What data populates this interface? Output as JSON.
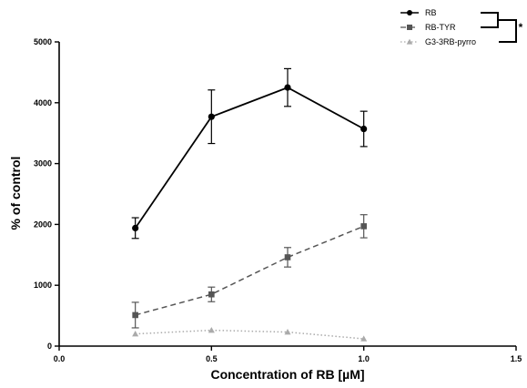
{
  "chart_data": {
    "type": "line",
    "xlabel": "Concentration of RB [µM]",
    "ylabel": "% of control",
    "xlim": [
      0,
      1.5
    ],
    "ylim": [
      0,
      5000
    ],
    "x_ticks": [
      0,
      0.5,
      1,
      1.5
    ],
    "x_tick_labels": [
      "0.0",
      "0.5",
      "1.0",
      "1.5"
    ],
    "y_ticks": [
      0,
      1000,
      2000,
      3000,
      4000,
      5000
    ],
    "y_tick_labels": [
      "0",
      "1000",
      "2000",
      "3000",
      "4000",
      "5000"
    ],
    "grid": false,
    "legend_position": "top-right",
    "significance_marker": "*",
    "series": [
      {
        "name": "RB",
        "color": "#000000",
        "line_style": "solid",
        "marker": "circle",
        "points": [
          {
            "x": 0.25,
            "y": 1940,
            "err": 170
          },
          {
            "x": 0.5,
            "y": 3770,
            "err": 440
          },
          {
            "x": 0.75,
            "y": 4250,
            "err": 310
          },
          {
            "x": 1.0,
            "y": 3570,
            "err": 290
          }
        ]
      },
      {
        "name": "RB-TYR",
        "color": "#555555",
        "line_style": "dashed",
        "marker": "square",
        "points": [
          {
            "x": 0.25,
            "y": 510,
            "err": 210
          },
          {
            "x": 0.5,
            "y": 850,
            "err": 120
          },
          {
            "x": 0.75,
            "y": 1460,
            "err": 160
          },
          {
            "x": 1.0,
            "y": 1970,
            "err": 190
          }
        ]
      },
      {
        "name": "G3-3RB-pyrro",
        "color": "#aaaaaa",
        "line_style": "dotted",
        "marker": "triangle",
        "points": [
          {
            "x": 0.25,
            "y": 200,
            "err": 0
          },
          {
            "x": 0.5,
            "y": 260,
            "err": 0
          },
          {
            "x": 0.75,
            "y": 230,
            "err": 0
          },
          {
            "x": 1.0,
            "y": 120,
            "err": 0
          }
        ]
      }
    ]
  }
}
